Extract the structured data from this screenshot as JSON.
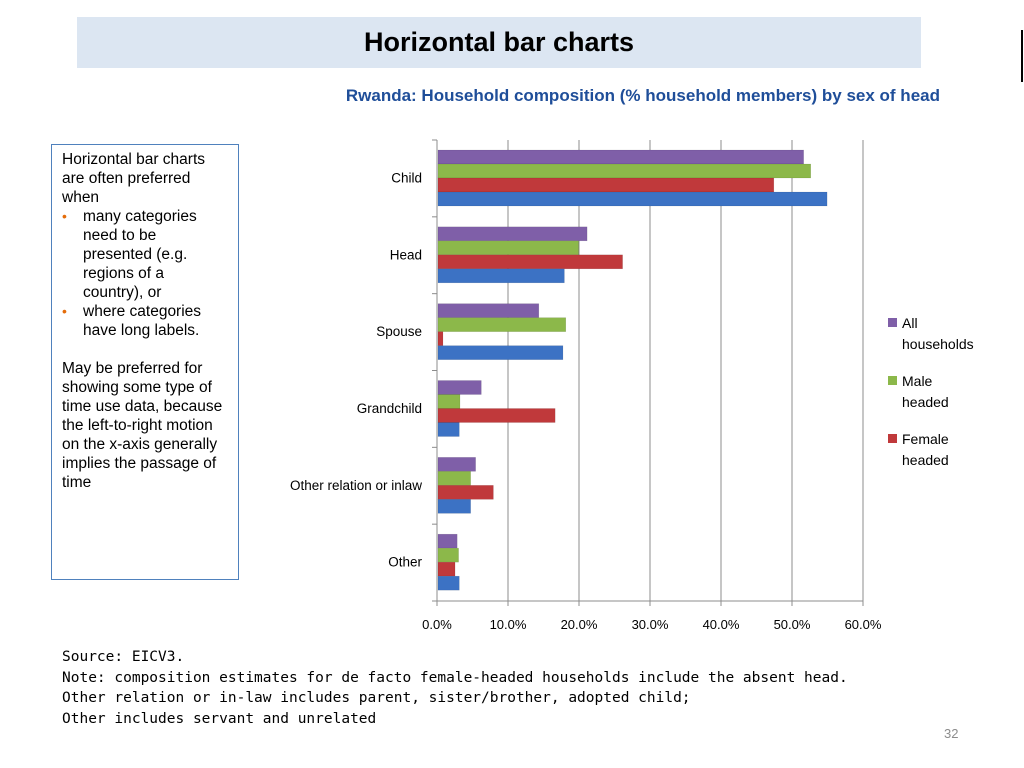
{
  "slide": {
    "title": "Horizontal bar charts",
    "page_number": "32"
  },
  "textbox": {
    "intro": "Horizontal bar charts are often preferred when",
    "bullet_char": "•",
    "bullets": [
      "many categories need to be presented (e.g. regions of a country), or",
      "where categories have long labels."
    ],
    "paragraph": "May be preferred for showing some type of time use data, because the left-to-right motion on the x-axis generally implies the passage of time"
  },
  "notes": [
    "Source: EICV3.",
    "Note: composition estimates for de facto female-headed households include the absent head.",
    "Other relation or in-law includes parent, sister/brother, adopted child;",
    "Other includes servant and unrelated"
  ],
  "chart_data": {
    "type": "bar",
    "orientation": "horizontal",
    "title": "Rwanda: Household composition (% household members) by sex of head",
    "categories": [
      "Child",
      "Head",
      "Spouse",
      "Grandchild",
      "Other relation or inlaw",
      "Other"
    ],
    "series": [
      {
        "name": "All households",
        "color": "#7f5fa8",
        "values": [
          51.5,
          21.0,
          14.2,
          6.1,
          5.3,
          2.7
        ]
      },
      {
        "name": "Male headed",
        "color": "#8cb84a",
        "values": [
          52.5,
          19.8,
          18.0,
          3.1,
          4.6,
          2.9
        ]
      },
      {
        "name": "Female headed",
        "color": "#c0393b",
        "values": [
          47.3,
          26.0,
          0.7,
          16.5,
          7.8,
          2.4
        ]
      },
      {
        "name": "",
        "color": "#3c72c4",
        "values": [
          54.8,
          17.8,
          17.6,
          3.0,
          4.6,
          3.0
        ]
      }
    ],
    "xlim": [
      0,
      60
    ],
    "x_ticks": [
      "0.0%",
      "10.0%",
      "20.0%",
      "30.0%",
      "40.0%",
      "50.0%",
      "60.0%"
    ],
    "grid": true,
    "legend_position": "right"
  }
}
